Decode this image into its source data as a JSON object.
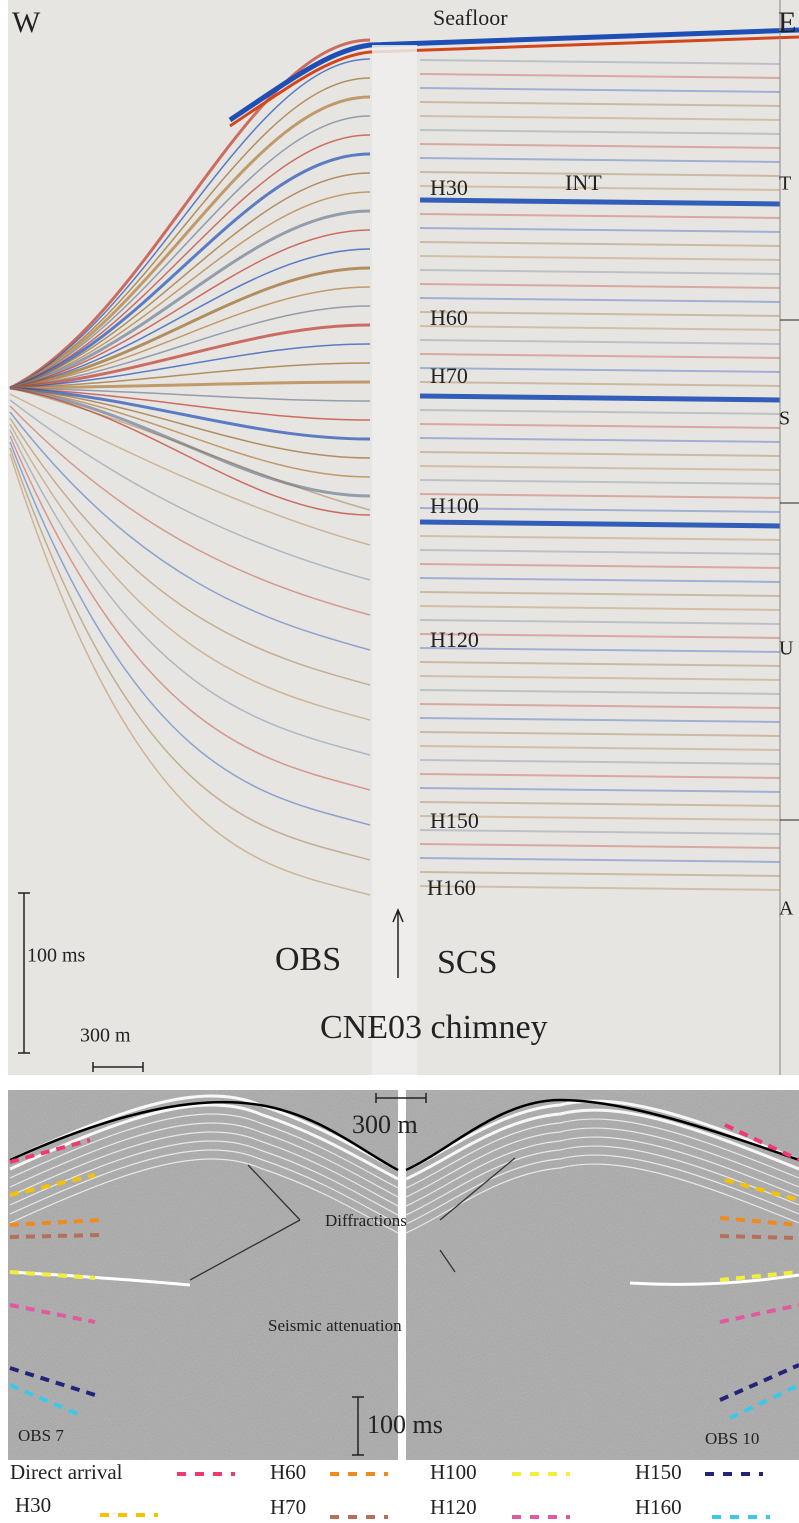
{
  "top_panel": {
    "corners": [
      "W",
      "E"
    ],
    "horizons": [
      "Seafloor",
      "H30",
      "INT",
      "H60",
      "H70",
      "H100",
      "H120",
      "H150",
      "H160"
    ],
    "units": [
      "T",
      "S",
      "U",
      "A"
    ],
    "time_scale": "100 ms",
    "distance_scale": "300 m",
    "left_label": "OBS",
    "right_label": "SCS",
    "caption": "CNE03 chimney"
  },
  "bottom_panel": {
    "distance_scale": "300 m",
    "time_scale": "100 ms",
    "annotations": [
      "Diffractions",
      "Seismic attenuation"
    ],
    "left_station": "OBS 7",
    "right_station": "OBS 10"
  },
  "legend": [
    {
      "label": "Direct arrival",
      "color": "#ef3a6d"
    },
    {
      "label": "H30",
      "color": "#f5c200"
    },
    {
      "label": "H60",
      "color": "#f08a1c"
    },
    {
      "label": "H70",
      "color": "#b5705a"
    },
    {
      "label": "H100",
      "color": "#f2ef3a"
    },
    {
      "label": "H120",
      "color": "#e05aa0"
    },
    {
      "label": "H150",
      "color": "#23237a"
    },
    {
      "label": "H160",
      "color": "#3cc8e8"
    }
  ]
}
